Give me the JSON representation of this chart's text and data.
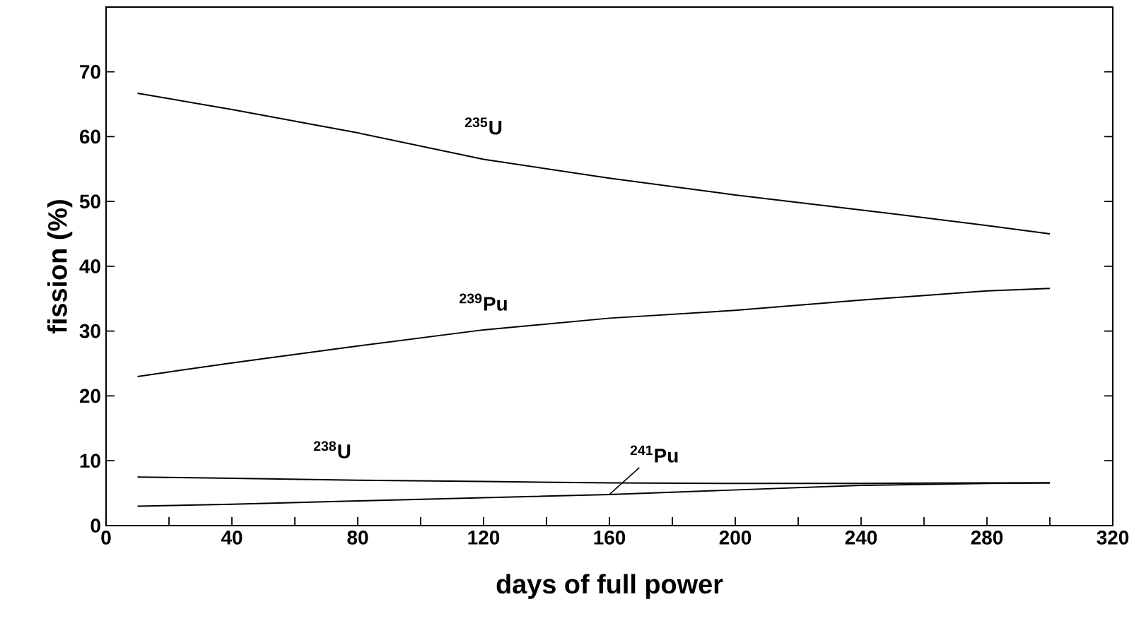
{
  "chart_data": {
    "type": "line",
    "xlabel": "days of full power",
    "ylabel": "fission (%)",
    "x": [
      10,
      40,
      80,
      120,
      160,
      200,
      240,
      280,
      300
    ],
    "series": [
      {
        "name": "$^{235}$U",
        "color": "#000000",
        "values": [
          66.7,
          64.2,
          60.6,
          56.5,
          53.6,
          51.0,
          48.7,
          46.3,
          45.0
        ]
      },
      {
        "name": "$^{239}$Pu",
        "color": "#000000",
        "values": [
          23.0,
          25.1,
          27.7,
          30.2,
          32.0,
          33.2,
          34.8,
          36.2,
          36.6
        ]
      },
      {
        "name": "$^{238}$U",
        "color": "#000000",
        "values": [
          7.5,
          7.3,
          7.0,
          6.8,
          6.6,
          6.5,
          6.5,
          6.6,
          6.6
        ]
      },
      {
        "name": "$^{241}$Pu",
        "color": "#000000",
        "values": [
          3.0,
          3.3,
          3.8,
          4.3,
          4.8,
          5.5,
          6.2,
          6.5,
          6.6
        ]
      }
    ],
    "xlim": [
      0,
      320
    ],
    "xticks": [
      0,
      {
        "value": 20,
        "label": null
      },
      40,
      {
        "value": 60,
        "label": null
      },
      80,
      {
        "value": 100,
        "label": null
      },
      120,
      {
        "value": 140,
        "label": null
      },
      160,
      {
        "value": 180,
        "label": null
      },
      200,
      {
        "value": 220,
        "label": null
      },
      240,
      {
        "value": 260,
        "label": null
      },
      280,
      {
        "value": 300,
        "label": null
      },
      320
    ],
    "ylim": [
      0,
      80
    ],
    "yticks": [
      0,
      10,
      20,
      30,
      40,
      50,
      60,
      70
    ],
    "grid": false,
    "marker": "none",
    "line_style": "solid"
  }
}
